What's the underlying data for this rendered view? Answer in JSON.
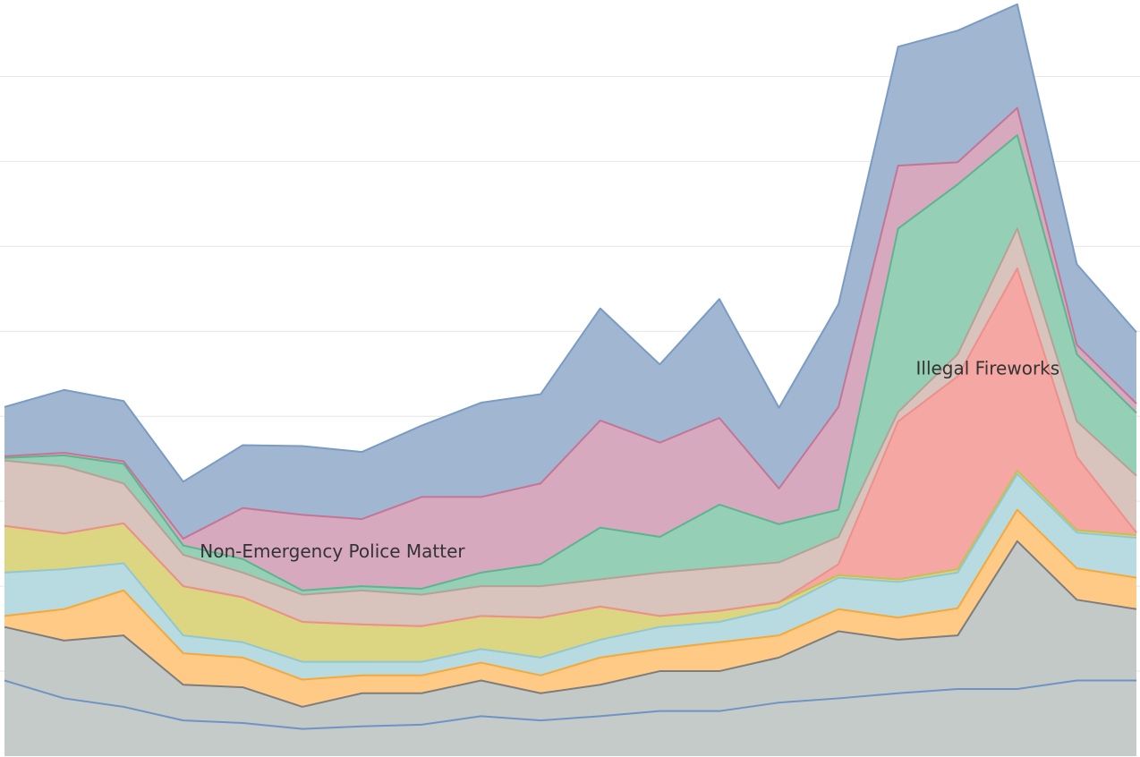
{
  "chart_data": {
    "type": "area",
    "stacked": true,
    "categories": [
      null,
      null,
      null,
      null,
      null,
      null,
      null,
      null,
      null,
      null,
      null,
      null,
      null,
      null,
      null,
      null,
      null,
      null,
      null,
      null
    ],
    "ylim": [
      0,
      890
    ],
    "yticks": [
      100,
      200,
      300,
      400,
      500,
      600,
      700,
      800
    ],
    "grid": true,
    "series": [
      {
        "color": "#c5cbc8",
        "line_color": "#6f93c4",
        "values": [
          89,
          68,
          58,
          42,
          39,
          32,
          35,
          37,
          47,
          42,
          47,
          53,
          53,
          63,
          68,
          74,
          79,
          79,
          89,
          89
        ]
      },
      {
        "color": "#c3c9c6",
        "line_color": "#7d7d7d",
        "values": [
          63,
          68,
          84,
          42,
          42,
          26,
          39,
          37,
          42,
          32,
          37,
          47,
          47,
          53,
          79,
          63,
          63,
          174,
          95,
          84
        ]
      },
      {
        "color": "#ffca86",
        "line_color": "#f5a83c",
        "values": [
          13,
          37,
          53,
          37,
          35,
          32,
          21,
          21,
          21,
          21,
          32,
          26,
          34,
          26,
          26,
          26,
          32,
          37,
          37,
          37
        ]
      },
      {
        "color": "#b7dbe0",
        "line_color": "#93c7cf",
        "values": [
          51,
          47,
          32,
          21,
          18,
          21,
          16,
          16,
          16,
          21,
          21,
          26,
          24,
          32,
          37,
          42,
          42,
          42,
          42,
          47
        ]
      },
      {
        "color": "#dcd682",
        "line_color": "#c5bf55",
        "values": [
          55,
          42,
          47,
          58,
          53,
          47,
          44,
          42,
          39,
          47,
          39,
          13,
          13,
          7,
          3,
          3,
          4,
          4,
          3,
          3
        ]
      },
      {
        "name": "Illegal Fireworks",
        "color": "#f4a7a3",
        "line_color": "#ee8f8a",
        "values": [
          0,
          0,
          0,
          0,
          0,
          0,
          0,
          0,
          0,
          0,
          0,
          0,
          0,
          0,
          13,
          186,
          227,
          238,
          86,
          3
        ]
      },
      {
        "color": "#d8c3bd",
        "line_color": "#b9a096",
        "values": [
          77,
          79,
          47,
          37,
          29,
          32,
          40,
          37,
          35,
          37,
          32,
          51,
          51,
          47,
          32,
          11,
          26,
          47,
          42,
          67
        ]
      },
      {
        "color": "#95cfb6",
        "line_color": "#5db48f",
        "values": [
          3,
          13,
          23,
          11,
          16,
          5,
          5,
          7,
          16,
          26,
          61,
          42,
          74,
          45,
          32,
          216,
          200,
          110,
          79,
          74
        ]
      },
      {
        "name": "Non-Emergency Police Matter",
        "color": "#d7a9bf",
        "line_color": "#c47595",
        "values": [
          2,
          3,
          3,
          8,
          60,
          89,
          79,
          108,
          89,
          95,
          126,
          111,
          102,
          42,
          121,
          74,
          26,
          32,
          11,
          11
        ]
      },
      {
        "color": "#a1b6d0",
        "line_color": "#7a9bc4",
        "values": [
          58,
          74,
          71,
          67,
          74,
          81,
          79,
          84,
          111,
          105,
          132,
          92,
          140,
          95,
          121,
          140,
          155,
          122,
          95,
          84
        ]
      }
    ],
    "annotations": [
      {
        "series": 8,
        "index": 6
      },
      {
        "series": 5,
        "index": 17
      }
    ]
  }
}
